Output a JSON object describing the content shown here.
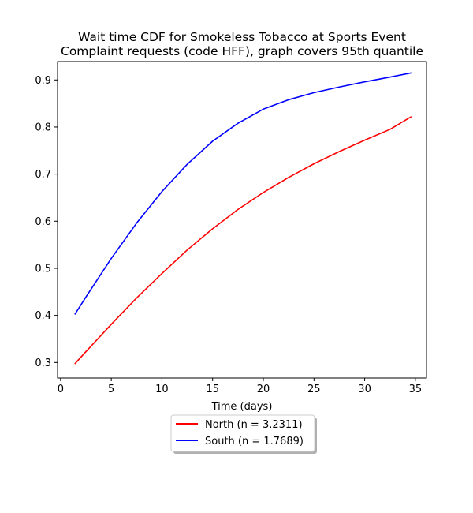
{
  "chart_data": {
    "type": "line",
    "title_lines": [
      "Wait time CDF for Smokeless Tobacco at Sports Event",
      "Complaint  requests (code HFF), graph covers 95th quantile"
    ],
    "xlabel": "Time (days)",
    "ylabel": "",
    "xlim": [
      -0.3,
      36.1
    ],
    "ylim": [
      0.267,
      0.939
    ],
    "xticks": [
      0,
      5,
      10,
      15,
      20,
      25,
      30,
      35
    ],
    "yticks": [
      0.3,
      0.4,
      0.5,
      0.6,
      0.7,
      0.8,
      0.9
    ],
    "grid": false,
    "legend_position": "below-center",
    "series": [
      {
        "name": "North (n = 3.2311)",
        "color": "#ff0000",
        "x": [
          1.4,
          2.5,
          5,
          7.5,
          10,
          12.5,
          15,
          17.5,
          20,
          22.5,
          25,
          27.5,
          30,
          32.5,
          34.6
        ],
        "y": [
          0.297,
          0.323,
          0.381,
          0.437,
          0.489,
          0.539,
          0.584,
          0.625,
          0.661,
          0.693,
          0.722,
          0.748,
          0.772,
          0.795,
          0.822
        ]
      },
      {
        "name": "South (n = 1.7689)",
        "color": "#0000ff",
        "x": [
          1.4,
          2.5,
          5,
          7.5,
          10,
          12.5,
          15,
          17.5,
          20,
          22.5,
          25,
          27.5,
          30,
          32.5,
          34.6
        ],
        "y": [
          0.402,
          0.439,
          0.521,
          0.596,
          0.663,
          0.721,
          0.77,
          0.808,
          0.838,
          0.858,
          0.873,
          0.885,
          0.896,
          0.906,
          0.915
        ]
      }
    ]
  }
}
